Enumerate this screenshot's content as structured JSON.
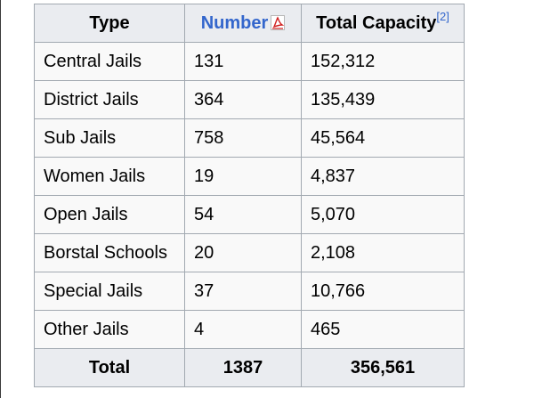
{
  "table": {
    "headers": {
      "type": "Type",
      "number": "Number",
      "capacity": "Total Capacity",
      "capacity_ref": "[2]"
    },
    "rows": [
      {
        "type": "Central Jails",
        "number": "131",
        "capacity": "152,312"
      },
      {
        "type": "District Jails",
        "number": "364",
        "capacity": "135,439"
      },
      {
        "type": "Sub Jails",
        "number": "758",
        "capacity": "45,564"
      },
      {
        "type": "Women Jails",
        "number": "19",
        "capacity": "4,837"
      },
      {
        "type": "Open Jails",
        "number": "54",
        "capacity": "5,070"
      },
      {
        "type": "Borstal Schools",
        "number": "20",
        "capacity": "2,108"
      },
      {
        "type": "Special Jails",
        "number": "37",
        "capacity": "10,766"
      },
      {
        "type": "Other Jails",
        "number": "4",
        "capacity": "465"
      }
    ],
    "total": {
      "label": "Total",
      "number": "1387",
      "capacity": "356,561"
    }
  },
  "icons": {
    "number_link_icon": "pdf-icon"
  },
  "colors": {
    "link": "#3366cc",
    "header_bg": "#eaecf0",
    "cell_bg": "#f9f9f9",
    "border": "#a2a9b1",
    "pdf_red": "#d01f1f"
  }
}
